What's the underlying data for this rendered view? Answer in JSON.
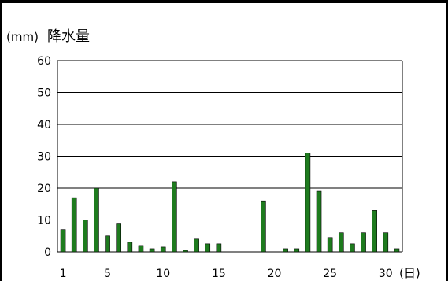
{
  "chart_data": {
    "type": "bar",
    "title": "降水量",
    "ylabel": "(mm)",
    "xlabel": "(日)",
    "ylim": [
      0,
      60
    ],
    "y_ticks": [
      0,
      10,
      20,
      30,
      40,
      50,
      60
    ],
    "x_tick_labels": [
      1,
      5,
      10,
      15,
      20,
      25,
      30
    ],
    "grid": true,
    "bar_color": "#1e7b1e",
    "categories": [
      1,
      2,
      3,
      4,
      5,
      6,
      7,
      8,
      9,
      10,
      11,
      12,
      13,
      14,
      15,
      16,
      17,
      18,
      19,
      20,
      21,
      22,
      23,
      24,
      25,
      26,
      27,
      28,
      29,
      30,
      31
    ],
    "values": [
      7,
      17,
      10,
      20,
      5,
      9,
      3,
      2,
      1,
      1.5,
      22,
      0.5,
      4,
      2.5,
      2.5,
      0,
      0,
      0,
      16,
      0,
      1,
      1,
      31,
      19,
      4.5,
      6,
      2.5,
      6,
      13,
      6,
      1
    ]
  }
}
